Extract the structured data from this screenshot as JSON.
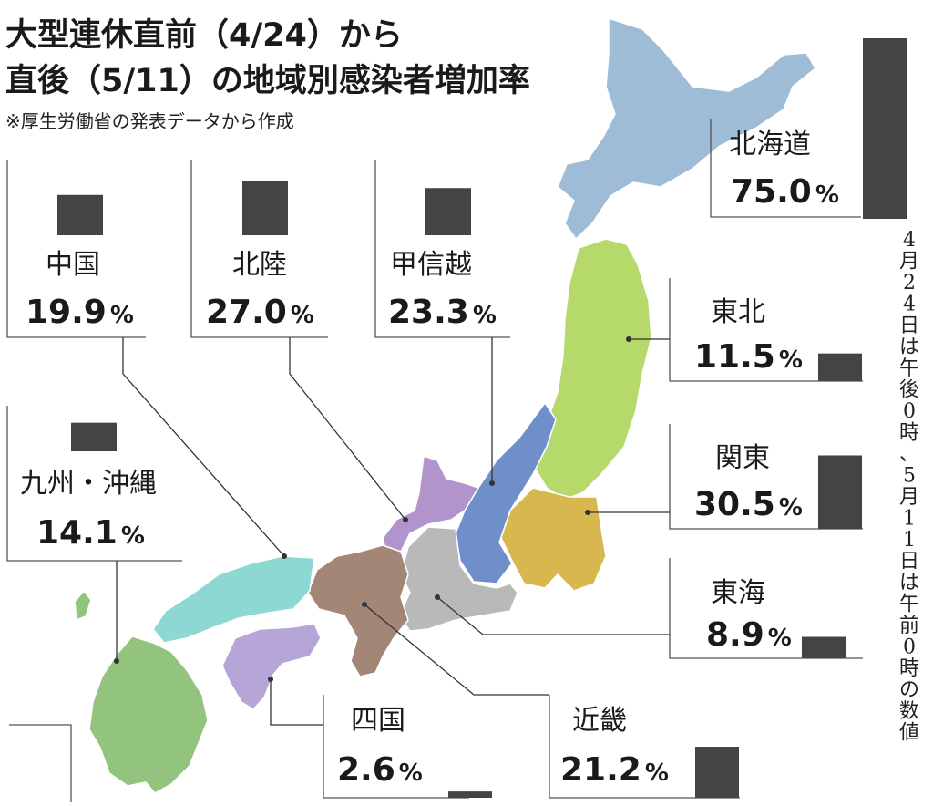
{
  "title": {
    "line1": "大型連休直前（4/24）から",
    "line2": "直後（5/11）の地域別感染者増加率"
  },
  "note": "※厚生労働省の発表データから作成",
  "side_note": "4月24日は午後0時、5月11日は午前0時の数値",
  "chart_data": {
    "type": "bar",
    "unit": "%",
    "categories": [
      "北海道",
      "東北",
      "関東",
      "東海",
      "近畿",
      "四国",
      "甲信越",
      "北陸",
      "中国",
      "九州・沖縄"
    ],
    "values": [
      75.0,
      11.5,
      30.5,
      8.9,
      21.2,
      2.6,
      23.3,
      27.0,
      19.9,
      14.1
    ],
    "labels": [
      "75.0",
      "11.5",
      "30.5",
      "8.9",
      "21.2",
      "2.6",
      "23.3",
      "27.0",
      "19.9",
      "14.1"
    ],
    "bar_color": "#444444",
    "region_colors": {
      "北海道": "#9fbcd6",
      "東北": "#b5d96a",
      "関東": "#d8b84e",
      "東海": "#b9b9b9",
      "近畿": "#a48676",
      "四国": "#b6a6d8",
      "甲信越": "#6f8fca",
      "北陸": "#b194cc",
      "中国": "#8dd8d2",
      "九州・沖縄": "#93c47d"
    }
  }
}
